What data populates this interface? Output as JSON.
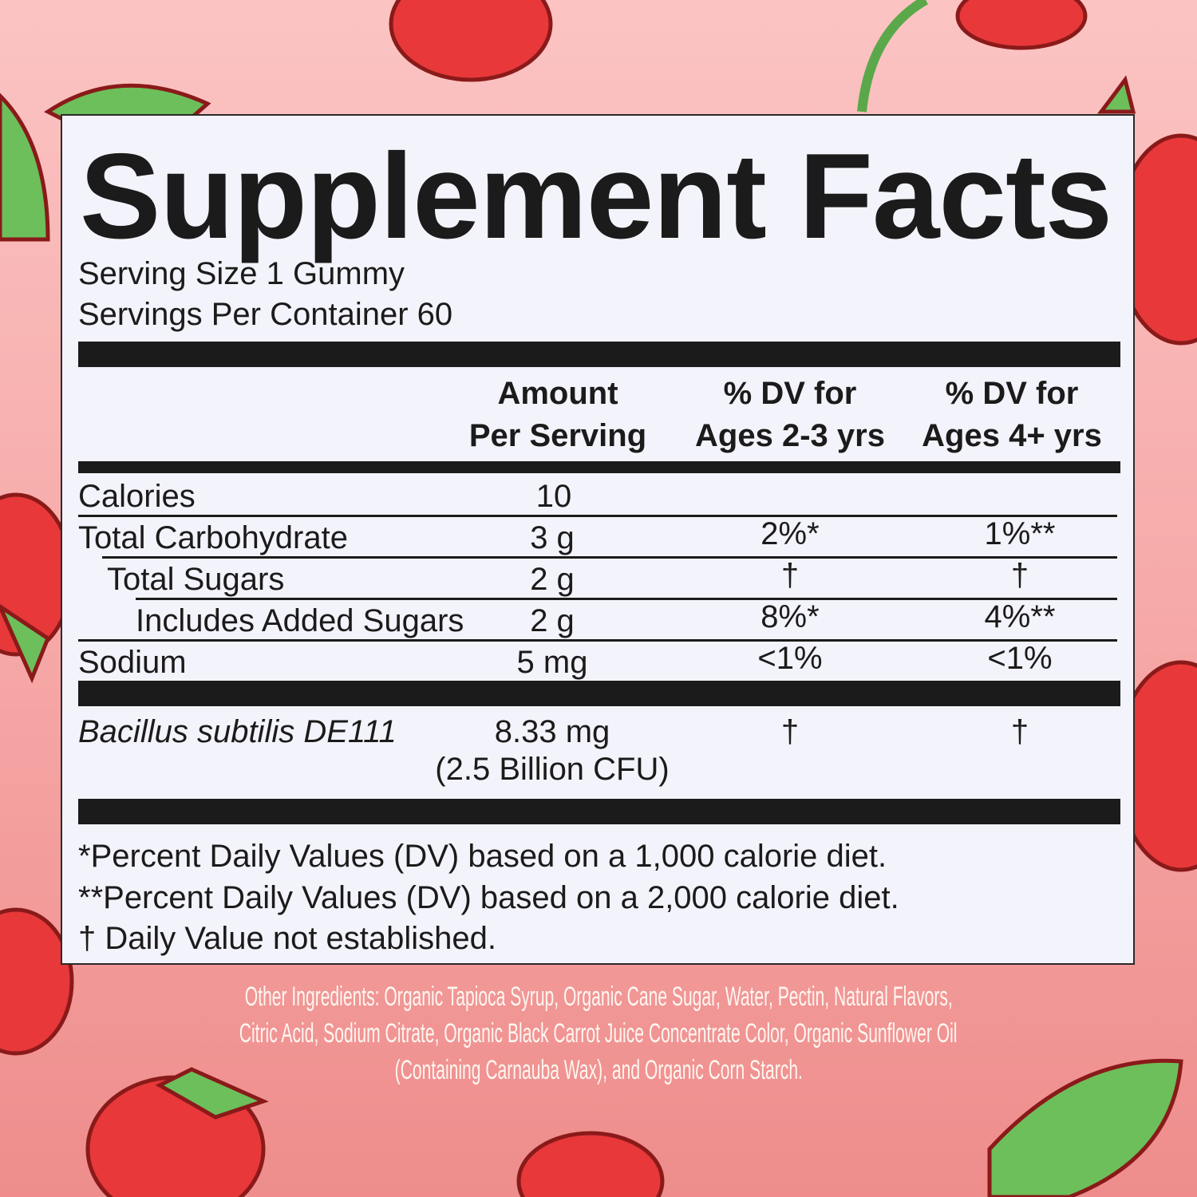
{
  "title": "Supplement Facts",
  "serving_size": "Serving Size 1 Gummy",
  "servings_per_container": "Servings Per Container 60",
  "columns": {
    "amount": [
      "Amount",
      "Per Serving"
    ],
    "dv_young": [
      "% DV for",
      "Ages 2-3 yrs"
    ],
    "dv_older": [
      "% DV for",
      "Ages 4+ yrs"
    ]
  },
  "rows": [
    {
      "name": "Calories",
      "amount": "10",
      "dv_young": "",
      "dv_older": ""
    },
    {
      "name": "Total Carbohydrate",
      "amount": "3 g",
      "dv_young": "2%*",
      "dv_older": "1%**"
    },
    {
      "name": "Total Sugars",
      "amount": "2 g",
      "dv_young": "†",
      "dv_older": "†"
    },
    {
      "name": "Includes Added Sugars",
      "amount": "2 g",
      "dv_young": "8%*",
      "dv_older": "4%**"
    },
    {
      "name": "Sodium",
      "amount": "5 mg",
      "dv_young": "<1%",
      "dv_older": "<1%"
    }
  ],
  "probiotic": {
    "name": "Bacillus subtilis DE111",
    "amount": "8.33 mg",
    "cfu": "(2.5 Billion CFU)",
    "dv_young": "†",
    "dv_older": "†"
  },
  "footnotes": [
    "*Percent Daily Values (DV) based on a 1,000 calorie diet.",
    "**Percent Daily Values (DV) based on a 2,000 calorie diet.",
    "† Daily Value not established."
  ],
  "other_ingredients": [
    "Other Ingredients: Organic Tapioca Syrup, Organic Cane Sugar, Water, Pectin, Natural Flavors,",
    "Citric Acid, Sodium Citrate, Organic Black Carrot Juice Concentrate Color, Organic Sunflower Oil",
    "(Containing Carnauba Wax), and Organic Corn Starch."
  ],
  "colors": {
    "background": "#f6aaa9",
    "panel": "#f3f3fb",
    "strawberry": "#e8383a",
    "leaf": "#6cbf5a",
    "outline": "#8a1a1a"
  }
}
